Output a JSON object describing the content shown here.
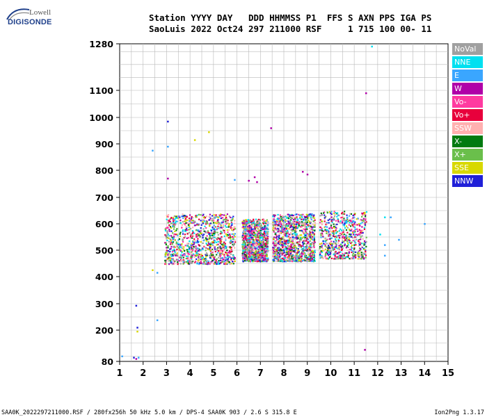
{
  "logo": {
    "top": "Lowell",
    "bottom": "DIGISONDE"
  },
  "header": {
    "line1": "Station YYYY DAY   DDD HHMMSS P1  FFS S AXN PPS IGA PS",
    "line2": "SaoLuis 2022 Oct24 297 211000 RSF     1 715 100 00- 11"
  },
  "legend": [
    {
      "label": "NoVal",
      "color": "#a0a0a0"
    },
    {
      "label": "NNE",
      "color": "#00e0f0"
    },
    {
      "label": "E",
      "color": "#3aa6ff"
    },
    {
      "label": "W",
      "color": "#b000a8"
    },
    {
      "label": "Vo-",
      "color": "#ff3aa0"
    },
    {
      "label": "Vo+",
      "color": "#e8003c"
    },
    {
      "label": "SSW",
      "color": "#ffb0b0"
    },
    {
      "label": "X-",
      "color": "#007a10"
    },
    {
      "label": "X+",
      "color": "#6abf4b"
    },
    {
      "label": "SSE",
      "color": "#d8d800"
    },
    {
      "label": "NNW",
      "color": "#2020d8"
    }
  ],
  "chart_data": {
    "type": "scatter",
    "xlim": [
      1,
      15
    ],
    "ylim": [
      80,
      1280
    ],
    "y_scale": "nonlinear (ionogram height)",
    "x_ticks": [
      "1",
      "2",
      "3",
      "4",
      "5",
      "6",
      "7",
      "8",
      "9",
      "10",
      "11",
      "12",
      "13",
      "14",
      "15"
    ],
    "y_ticks": [
      "80",
      "200",
      "300",
      "400",
      "500",
      "600",
      "700",
      "800",
      "900",
      "1000",
      "1100",
      "1280"
    ],
    "grid": true,
    "point_clusters": [
      {
        "x_range": [
          2.9,
          5.9
        ],
        "y_range": [
          450,
          640
        ],
        "density": "high"
      },
      {
        "x_range": [
          6.2,
          7.3
        ],
        "y_range": [
          460,
          620
        ],
        "density": "high"
      },
      {
        "x_range": [
          7.5,
          9.3
        ],
        "y_range": [
          460,
          640
        ],
        "density": "high"
      },
      {
        "x_range": [
          9.5,
          11.5
        ],
        "y_range": [
          470,
          650
        ],
        "density": "medium"
      }
    ],
    "points": [
      {
        "x": 3.05,
        "y": 985,
        "color": "#2020d8"
      },
      {
        "x": 3.05,
        "y": 890,
        "color": "#3aa6ff"
      },
      {
        "x": 2.4,
        "y": 875,
        "color": "#3aa6ff"
      },
      {
        "x": 4.2,
        "y": 915,
        "color": "#d8d800"
      },
      {
        "x": 4.8,
        "y": 945,
        "color": "#d8d800"
      },
      {
        "x": 7.45,
        "y": 960,
        "color": "#b000a8"
      },
      {
        "x": 3.05,
        "y": 770,
        "color": "#b000a8"
      },
      {
        "x": 5.9,
        "y": 765,
        "color": "#3aa6ff"
      },
      {
        "x": 6.5,
        "y": 762,
        "color": "#b000a8"
      },
      {
        "x": 6.75,
        "y": 775,
        "color": "#b000a8"
      },
      {
        "x": 6.85,
        "y": 757,
        "color": "#b000a8"
      },
      {
        "x": 8.8,
        "y": 795,
        "color": "#b000a8"
      },
      {
        "x": 9.0,
        "y": 785,
        "color": "#b000a8"
      },
      {
        "x": 11.5,
        "y": 1090,
        "color": "#b000a8"
      },
      {
        "x": 11.75,
        "y": 1270,
        "color": "#00e0f0"
      },
      {
        "x": 12.3,
        "y": 625,
        "color": "#00e0f0"
      },
      {
        "x": 12.55,
        "y": 625,
        "color": "#3aa6ff"
      },
      {
        "x": 12.1,
        "y": 560,
        "color": "#00e0f0"
      },
      {
        "x": 12.9,
        "y": 540,
        "color": "#3aa6ff"
      },
      {
        "x": 14.0,
        "y": 600,
        "color": "#3aa6ff"
      },
      {
        "x": 12.3,
        "y": 520,
        "color": "#3aa6ff"
      },
      {
        "x": 12.3,
        "y": 480,
        "color": "#3aa6ff"
      },
      {
        "x": 2.4,
        "y": 425,
        "color": "#d8d800"
      },
      {
        "x": 2.6,
        "y": 415,
        "color": "#3aa6ff"
      },
      {
        "x": 1.7,
        "y": 293,
        "color": "#2020d8"
      },
      {
        "x": 2.6,
        "y": 238,
        "color": "#3aa6ff"
      },
      {
        "x": 1.75,
        "y": 210,
        "color": "#2020d8"
      },
      {
        "x": 1.75,
        "y": 195,
        "color": "#d8d800"
      },
      {
        "x": 1.6,
        "y": 95,
        "color": "#2020d8"
      },
      {
        "x": 1.7,
        "y": 90,
        "color": "#b000a8"
      },
      {
        "x": 1.8,
        "y": 95,
        "color": "#3aa6ff"
      },
      {
        "x": 1.1,
        "y": 100,
        "color": "#3aa6ff"
      },
      {
        "x": 11.45,
        "y": 125,
        "color": "#b000a8"
      }
    ]
  },
  "footer": {
    "left": "SAA0K_2022297211000.RSF / 280fx256h 50 kHz 5.0 km / DPS-4 SAA0K 903 / 2.6 S 315.8 E",
    "right": "Ion2Png 1.3.17"
  }
}
